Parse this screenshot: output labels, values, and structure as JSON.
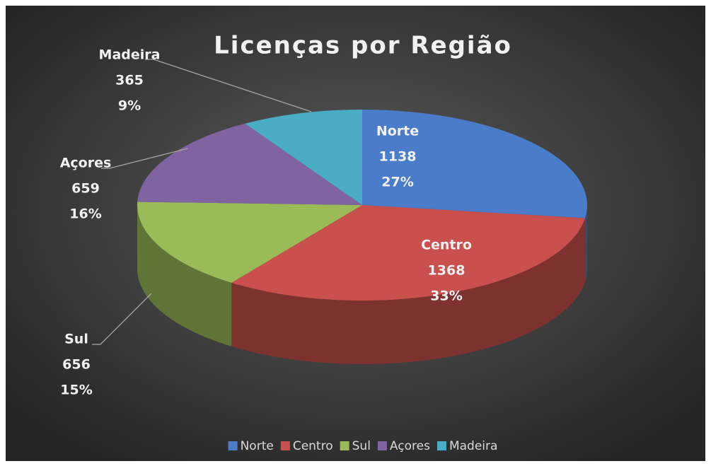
{
  "chart_data": {
    "type": "pie3d",
    "title": "Licenças por Região",
    "categories": [
      "Norte",
      "Centro",
      "Sul",
      "Açores",
      "Madeira"
    ],
    "values": [
      1138,
      1368,
      656,
      659,
      365
    ],
    "percentages": [
      27,
      33,
      15,
      16,
      9
    ],
    "percentage_labels": [
      "27%",
      "33%",
      "15%",
      "16%",
      "9%"
    ],
    "colors": [
      "#4a7cc9",
      "#c9504d",
      "#9bbb59",
      "#8064a2",
      "#4bacc6"
    ],
    "legend": "bottom"
  }
}
